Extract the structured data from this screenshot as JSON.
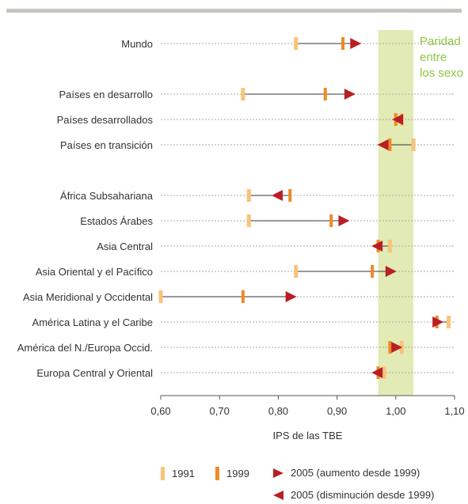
{
  "chart_data": {
    "type": "dot",
    "categories": [
      "Mundo",
      "Países en desarrollo",
      "Países desarrollados",
      "Países en transición",
      "África Subsahariana",
      "Estados Árabes",
      "Asia Central",
      "Asia Oriental y el Pacífico",
      "Asia Meridional y Occidental",
      "América Latina y el Caribe",
      "América del N./Europa Occid.",
      "Europa Central y Oriental"
    ],
    "series": [
      {
        "name": "1991",
        "values": [
          0.83,
          0.74,
          1.01,
          1.03,
          0.75,
          0.75,
          0.99,
          0.83,
          0.6,
          1.09,
          1.01,
          0.98
        ]
      },
      {
        "name": "1999",
        "values": [
          0.91,
          0.88,
          1.0,
          0.99,
          0.82,
          0.89,
          0.97,
          0.96,
          0.74,
          1.07,
          0.99,
          0.97
        ]
      },
      {
        "name": "2005",
        "values": [
          0.94,
          0.93,
          0.995,
          0.97,
          0.79,
          0.92,
          0.96,
          1.0,
          0.83,
          1.08,
          1.01,
          0.96
        ]
      }
    ],
    "xlabel": "IPS de las TBE",
    "xlim": [
      0.6,
      1.1
    ],
    "xticks": [
      0.6,
      0.7,
      0.8,
      0.9,
      1.0,
      1.1
    ],
    "xtick_labels": [
      "0,60",
      "0,70",
      "0,80",
      "0,90",
      "1,00",
      "1,10"
    ],
    "parity_band": [
      0.97,
      1.03
    ],
    "parity_label_lines": [
      "Paridad",
      "entre",
      "los sexo"
    ],
    "colors": {
      "y1991": "#fbc27a",
      "y1999": "#f08a24",
      "y2005": "#b81f24",
      "band": "#e2ebb5",
      "band_text": "#8cc63f"
    }
  },
  "legend": {
    "y1991": "1991",
    "y1999": "1999",
    "increase": "2005 (aumento desde 1999)",
    "decrease": "2005 (disminución desde 1999)"
  }
}
